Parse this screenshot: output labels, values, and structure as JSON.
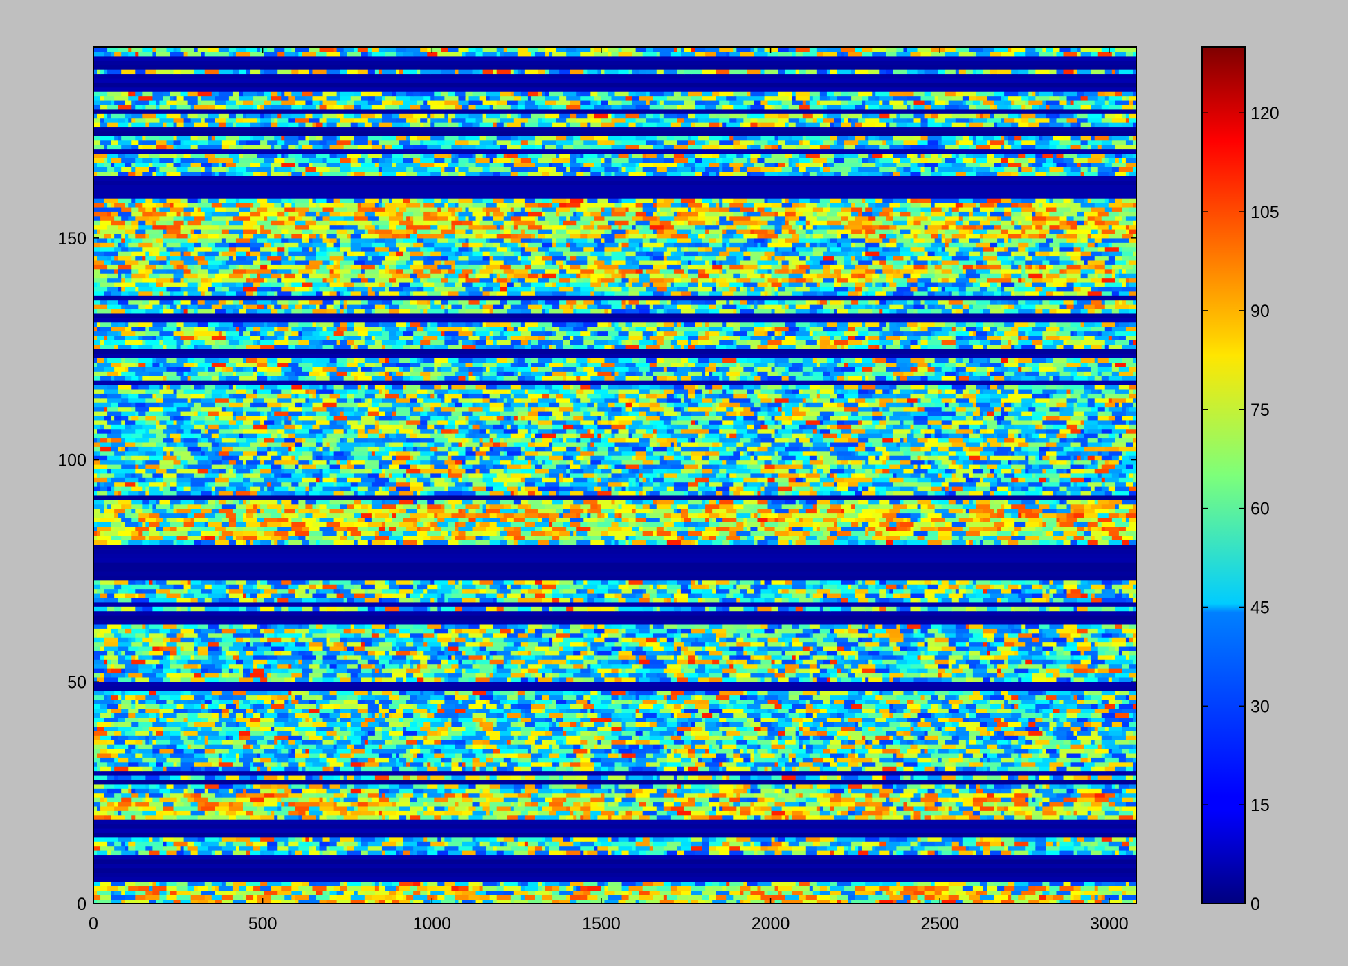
{
  "chart_data": {
    "type": "heatmap",
    "title": "",
    "xlabel": "",
    "ylabel": "",
    "xlim": [
      0,
      3080
    ],
    "ylim": [
      0,
      193
    ],
    "xticks": [
      0,
      500,
      1000,
      1500,
      2000,
      2500,
      3000
    ],
    "yticks": [
      0,
      50,
      100,
      150
    ],
    "colormap": "jet",
    "colorbar": {
      "range": [
        0,
        130
      ],
      "ticks": [
        0,
        15,
        30,
        45,
        60,
        75,
        90,
        105,
        120
      ],
      "placement": "right"
    },
    "grid": false,
    "rows": 193,
    "columns": 3080,
    "low_value_rows": [
      5,
      6,
      7,
      8,
      10,
      15,
      16,
      17,
      18,
      73,
      74,
      75,
      76,
      77,
      78,
      79,
      80,
      159,
      160,
      161,
      162,
      163,
      184,
      185,
      186,
      189,
      190
    ],
    "high_value_rows": [
      19,
      20,
      21,
      22,
      23,
      24,
      0,
      1,
      2,
      3,
      82,
      83,
      84,
      85,
      86,
      87,
      88,
      89,
      140,
      141,
      142,
      143,
      150,
      151,
      152,
      153,
      154,
      155,
      156,
      157
    ],
    "cell_values_note": ""
  },
  "colors": {
    "figure_background": "#bfbfbf",
    "axes_frame": "#000000"
  }
}
